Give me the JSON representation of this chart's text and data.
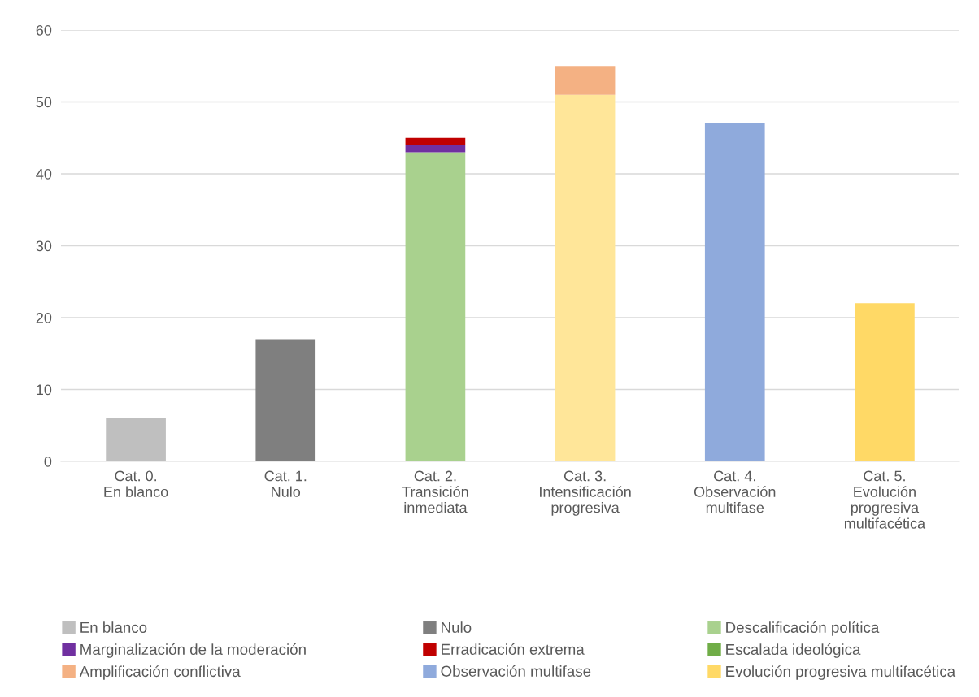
{
  "chart_data": {
    "type": "bar",
    "stacked": true,
    "categories": [
      "Cat. 0.\nEn blanco",
      "Cat. 1.\nNulo",
      "Cat. 2.\nTransición\ninmediata",
      "Cat. 3.\nIntensificación\nprogresiva",
      "Cat. 4.\nObservación\nmultifase",
      "Cat. 5.\nEvolución\nprogresiva\nmultifacética"
    ],
    "series": [
      {
        "color": "#ffe699",
        "values": [
          null,
          null,
          null,
          51,
          null,
          null
        ]
      },
      {
        "name": "En blanco",
        "color": "#bfbfbf",
        "values": [
          6,
          null,
          null,
          null,
          null,
          null
        ]
      },
      {
        "name": "Nulo",
        "color": "#7f7f7f",
        "values": [
          null,
          17,
          null,
          null,
          null,
          null
        ]
      },
      {
        "name": "Descalificación política",
        "color": "#a9d18e",
        "values": [
          null,
          null,
          43,
          null,
          null,
          null
        ]
      },
      {
        "name": "Marginalización de la moderación",
        "color": "#7030a0",
        "values": [
          null,
          null,
          1,
          null,
          null,
          null
        ]
      },
      {
        "name": "Erradicación extrema",
        "color": "#c00000",
        "values": [
          null,
          null,
          1,
          null,
          null,
          null
        ]
      },
      {
        "name": "Escalada ideológica",
        "color": "#70ad47",
        "values": [
          null,
          null,
          null,
          null,
          null,
          null
        ]
      },
      {
        "name": "Amplificación conflictiva",
        "color": "#f4b183",
        "values": [
          null,
          null,
          null,
          4,
          null,
          null
        ]
      },
      {
        "name": "Observación multifase",
        "color": "#8faadc",
        "values": [
          null,
          null,
          null,
          null,
          47,
          null
        ]
      },
      {
        "name": "Evolución progresiva multifacética",
        "color": "#ffd966",
        "values": [
          null,
          null,
          null,
          null,
          null,
          22
        ]
      }
    ],
    "ylim": [
      0,
      60
    ],
    "yticks": [
      0,
      10,
      20,
      30,
      40,
      50,
      60
    ],
    "grid": "y",
    "legend": "bottom"
  }
}
